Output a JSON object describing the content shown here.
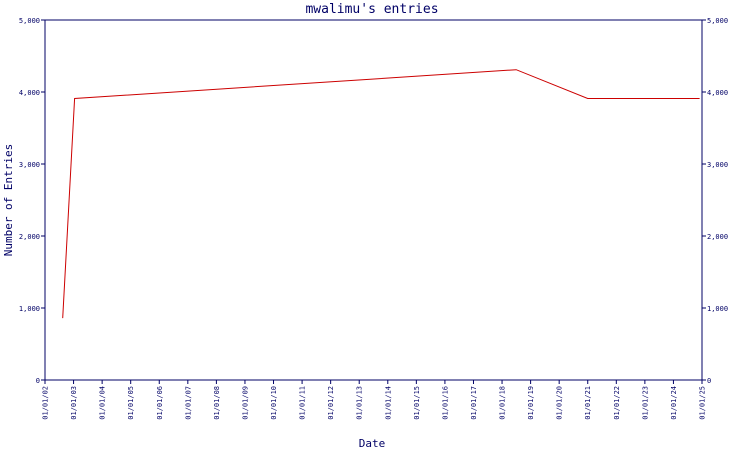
{
  "chart_data": {
    "type": "line",
    "title": "mwalimu's entries",
    "xlabel": "Date",
    "ylabel": "Number of Entries",
    "x_ticks": [
      "01/01/02",
      "01/01/03",
      "01/01/04",
      "01/01/05",
      "01/01/06",
      "01/01/07",
      "01/01/08",
      "01/01/09",
      "01/01/10",
      "01/01/11",
      "01/01/12",
      "01/01/13",
      "01/01/14",
      "01/01/15",
      "01/01/16",
      "01/01/17",
      "01/01/18",
      "01/01/19",
      "01/01/20",
      "01/01/21",
      "01/01/22",
      "01/01/23",
      "01/01/24",
      "01/01/25"
    ],
    "y_ticks": [
      "0",
      "1,000",
      "2,000",
      "3,000",
      "4,000",
      "5,000"
    ],
    "ylim": [
      0,
      5000
    ],
    "xlim": [
      "2002-01-01",
      "2025-01-01"
    ],
    "grid": false,
    "series": [
      {
        "color": "#cc0000",
        "points": [
          {
            "x": "2002-08-15",
            "y": 860
          },
          {
            "x": "2003-01-15",
            "y": 3910
          },
          {
            "x": "2018-07-01",
            "y": 4310
          },
          {
            "x": "2021-01-01",
            "y": 3910
          },
          {
            "x": "2024-12-01",
            "y": 3910
          }
        ]
      }
    ],
    "colors": {
      "axis": "#000066",
      "line": "#cc0000"
    }
  }
}
